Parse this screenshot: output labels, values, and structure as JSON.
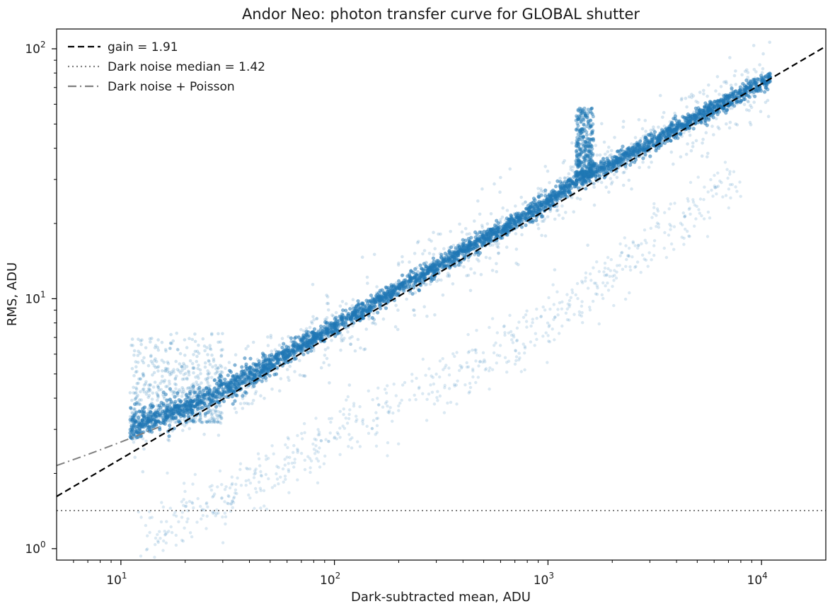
{
  "chart_data": {
    "type": "scatter",
    "title": "Andor Neo: photon transfer curve for GLOBAL shutter",
    "xlabel": "Dark-subtracted mean, ADU",
    "ylabel": "RMS, ADU",
    "xscale": "log",
    "yscale": "log",
    "xlim": [
      5,
      20000
    ],
    "ylim": [
      0.9,
      120
    ],
    "xticks": [
      {
        "value": 10,
        "base": "10",
        "exp": "1"
      },
      {
        "value": 100,
        "base": "10",
        "exp": "2"
      },
      {
        "value": 1000,
        "base": "10",
        "exp": "3"
      },
      {
        "value": 10000,
        "base": "10",
        "exp": "4"
      }
    ],
    "yticks": [
      {
        "value": 1,
        "base": "10",
        "exp": "0"
      },
      {
        "value": 10,
        "base": "10",
        "exp": "1"
      },
      {
        "value": 100,
        "base": "10",
        "exp": "2"
      }
    ],
    "grid": false,
    "legend_position": "top-left",
    "series": [
      {
        "name": "gain = 1.91",
        "kind": "line",
        "style": "dashed",
        "color": "#000000",
        "x": [
          5,
          20000
        ],
        "y": [
          1.618,
          102.3
        ]
      },
      {
        "name": "Dark noise median = 1.42",
        "kind": "line",
        "style": "dotted",
        "color": "#808080",
        "x": [
          5,
          20000
        ],
        "y": [
          1.42,
          1.42
        ]
      },
      {
        "name": "Dark noise + Poisson",
        "kind": "line",
        "style": "dashdot",
        "color": "#808080",
        "x": [
          5,
          7,
          10,
          15
        ],
        "y": [
          2.15,
          2.38,
          2.67,
          3.06
        ]
      },
      {
        "name": "",
        "kind": "scatter",
        "color": "#1f77b4",
        "main_band": {
          "x": [
            11,
            13,
            16,
            20,
            25,
            30,
            40,
            50,
            70,
            100,
            150,
            200,
            300,
            500,
            700,
            1000,
            1300,
            1600,
            2000,
            3000,
            5000,
            7000,
            9000,
            11000
          ],
          "y": [
            3.0,
            3.2,
            3.45,
            3.7,
            4.0,
            4.35,
            4.95,
            5.5,
            6.5,
            7.75,
            9.5,
            11.0,
            13.4,
            17.4,
            20.3,
            24.5,
            29.0,
            32.0,
            34.8,
            42.0,
            53.0,
            62.0,
            70.0,
            76.0
          ],
          "spread": [
            0.09,
            0.09,
            0.09,
            0.08,
            0.07,
            0.07,
            0.07,
            0.06,
            0.05,
            0.05,
            0.05,
            0.05,
            0.05,
            0.05,
            0.05,
            0.05,
            0.05,
            0.05,
            0.05,
            0.05,
            0.05,
            0.05,
            0.05,
            0.05
          ]
        },
        "high_noise_blob": {
          "x": [
            11,
            30
          ],
          "y": [
            3.2,
            7.3
          ]
        },
        "spike": {
          "x": [
            1300,
            1700
          ],
          "y": [
            31,
            58
          ]
        },
        "lower_tail": {
          "x": [
            12,
            20,
            40,
            70,
            100,
            200,
            400,
            700,
            1000,
            2000,
            4000,
            8000
          ],
          "y": [
            1.1,
            1.35,
            1.8,
            2.4,
            2.9,
            3.8,
            5.1,
            6.6,
            8.2,
            12.5,
            20.0,
            33.0
          ]
        }
      }
    ]
  }
}
